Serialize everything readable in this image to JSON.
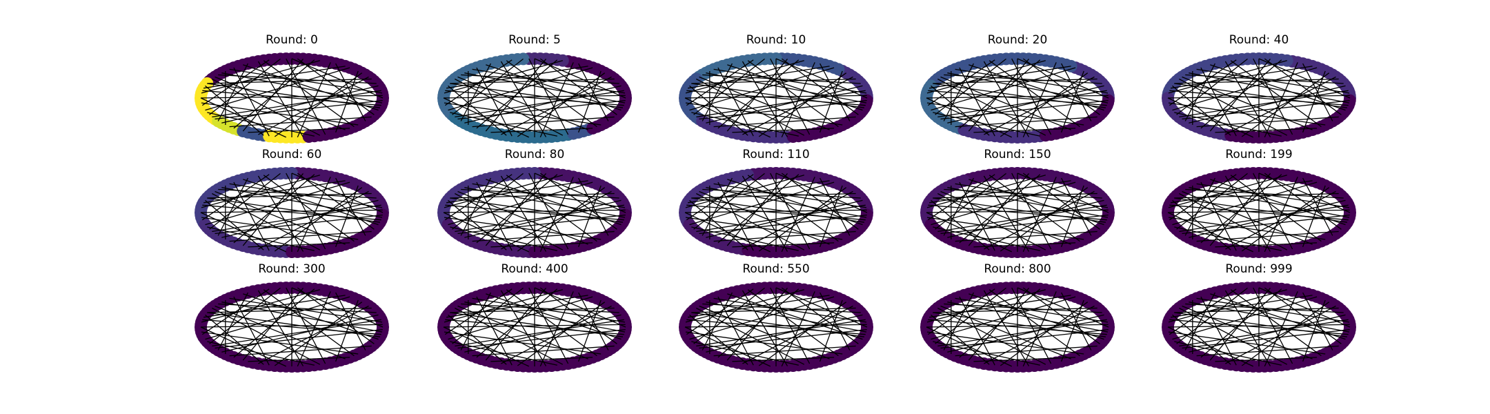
{
  "figure": {
    "panels": [
      {
        "title": "Round: 0",
        "arcs": [
          [
            0.0,
            0.44,
            "#440154"
          ],
          [
            0.44,
            0.6,
            "#fde725"
          ],
          [
            0.6,
            0.66,
            "#d6e22c"
          ],
          [
            0.66,
            0.71,
            "#3b528b"
          ],
          [
            0.71,
            0.78,
            "#fde725"
          ],
          [
            0.78,
            1.0,
            "#440154"
          ]
        ]
      },
      {
        "title": "Round: 5",
        "arcs": [
          [
            0.0,
            0.2,
            "#440154"
          ],
          [
            0.2,
            0.27,
            "#482a75"
          ],
          [
            0.27,
            0.58,
            "#3e6a92"
          ],
          [
            0.58,
            0.82,
            "#2c6b8e"
          ],
          [
            0.82,
            0.86,
            "#3b528b"
          ],
          [
            0.86,
            1.0,
            "#440154"
          ]
        ]
      },
      {
        "title": "Round: 10",
        "arcs": [
          [
            0.0,
            0.13,
            "#46307e"
          ],
          [
            0.13,
            0.25,
            "#3b528b"
          ],
          [
            0.25,
            0.42,
            "#3e6a92"
          ],
          [
            0.42,
            0.6,
            "#3b528b"
          ],
          [
            0.6,
            0.78,
            "#46307e"
          ],
          [
            0.78,
            1.0,
            "#440154"
          ]
        ]
      },
      {
        "title": "Round: 20",
        "arcs": [
          [
            0.0,
            0.15,
            "#46307e"
          ],
          [
            0.15,
            0.45,
            "#3b528b"
          ],
          [
            0.45,
            0.65,
            "#3e6a92"
          ],
          [
            0.65,
            0.8,
            "#46307e"
          ],
          [
            0.8,
            1.0,
            "#440154"
          ]
        ]
      },
      {
        "title": "Round: 40",
        "arcs": [
          [
            0.0,
            0.2,
            "#472d7b"
          ],
          [
            0.2,
            0.5,
            "#414487"
          ],
          [
            0.5,
            0.7,
            "#472d7b"
          ],
          [
            0.7,
            1.0,
            "#440154"
          ]
        ]
      },
      {
        "title": "Round: 60",
        "arcs": [
          [
            0.0,
            0.25,
            "#471164"
          ],
          [
            0.25,
            0.55,
            "#433e85"
          ],
          [
            0.55,
            0.75,
            "#472d7b"
          ],
          [
            0.75,
            1.0,
            "#440154"
          ]
        ]
      },
      {
        "title": "Round: 80",
        "arcs": [
          [
            0.0,
            0.25,
            "#471164"
          ],
          [
            0.25,
            0.55,
            "#46337f"
          ],
          [
            0.55,
            0.75,
            "#48186a"
          ],
          [
            0.75,
            1.0,
            "#440154"
          ]
        ]
      },
      {
        "title": "Round: 110",
        "arcs": [
          [
            0.0,
            0.3,
            "#471164"
          ],
          [
            0.3,
            0.55,
            "#472f7d"
          ],
          [
            0.55,
            0.7,
            "#48186a"
          ],
          [
            0.7,
            1.0,
            "#440154"
          ]
        ]
      },
      {
        "title": "Round: 150",
        "arcs": [
          [
            0.0,
            0.35,
            "#460b5e"
          ],
          [
            0.35,
            0.55,
            "#48186a"
          ],
          [
            0.55,
            1.0,
            "#440154"
          ]
        ]
      },
      {
        "title": "Round: 199",
        "arcs": [
          [
            0.0,
            1.0,
            "#440154"
          ]
        ]
      },
      {
        "title": "Round: 300",
        "arcs": [
          [
            0.0,
            1.0,
            "#440154"
          ]
        ]
      },
      {
        "title": "Round: 400",
        "arcs": [
          [
            0.0,
            1.0,
            "#440154"
          ]
        ]
      },
      {
        "title": "Round: 550",
        "arcs": [
          [
            0.0,
            1.0,
            "#440154"
          ]
        ]
      },
      {
        "title": "Round: 800",
        "arcs": [
          [
            0.0,
            1.0,
            "#440154"
          ]
        ]
      },
      {
        "title": "Round: 999",
        "arcs": [
          [
            0.0,
            1.0,
            "#440154"
          ]
        ]
      }
    ],
    "node_count": 100,
    "edges": [
      [
        2,
        37
      ],
      [
        5,
        61
      ],
      [
        8,
        44
      ],
      [
        11,
        72
      ],
      [
        14,
        55
      ],
      [
        17,
        90
      ],
      [
        20,
        48
      ],
      [
        23,
        66
      ],
      [
        26,
        81
      ],
      [
        29,
        53
      ],
      [
        31,
        77
      ],
      [
        34,
        95
      ],
      [
        38,
        62
      ],
      [
        41,
        85
      ],
      [
        45,
        70
      ],
      [
        47,
        97
      ],
      [
        50,
        74
      ],
      [
        52,
        88
      ],
      [
        56,
        79
      ],
      [
        59,
        99
      ],
      [
        63,
        92
      ],
      [
        67,
        86
      ],
      [
        0,
        25
      ],
      [
        3,
        58
      ],
      [
        6,
        40
      ],
      [
        9,
        69
      ],
      [
        12,
        83
      ],
      [
        15,
        46
      ],
      [
        18,
        76
      ],
      [
        21,
        64
      ],
      [
        24,
        93
      ],
      [
        27,
        57
      ],
      [
        30,
        87
      ],
      [
        33,
        60
      ],
      [
        36,
        71
      ],
      [
        39,
        98
      ],
      [
        42,
        80
      ],
      [
        1,
        50
      ],
      [
        75,
        25
      ],
      [
        96,
        44
      ]
    ],
    "edge_color": "#000000"
  }
}
